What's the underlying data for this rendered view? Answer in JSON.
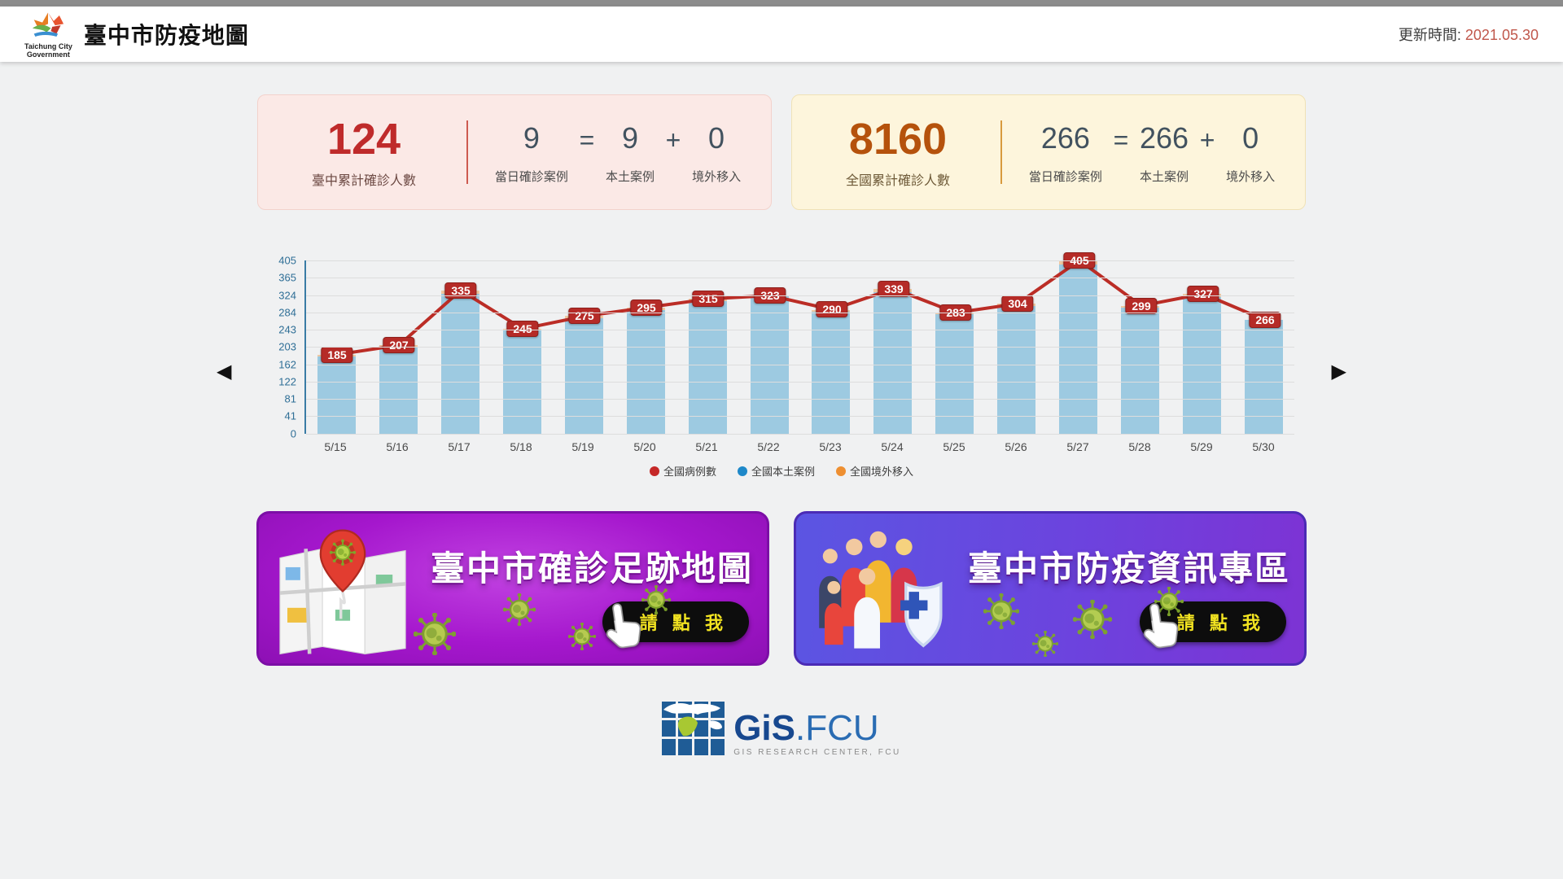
{
  "header": {
    "title": "臺中市防疫地圖",
    "logo_line1": "Taichung City",
    "logo_line2": "Government",
    "update_label": "更新時間:",
    "update_date": "2021.05.30"
  },
  "cards": [
    {
      "total": "124",
      "total_label": "臺中累計確診人數",
      "daily": "9",
      "daily_label": "當日確診案例",
      "eq": "=",
      "local": "9",
      "local_label": "本土案例",
      "plus": "+",
      "imported": "0",
      "imported_label": "境外移入"
    },
    {
      "total": "8160",
      "total_label": "全國累計確診人數",
      "daily": "266",
      "daily_label": "當日確診案例",
      "eq": "=",
      "local": "266",
      "local_label": "本土案例",
      "plus": "+",
      "imported": "0",
      "imported_label": "境外移入"
    }
  ],
  "chart_data": {
    "type": "bar+line",
    "categories": [
      "5/15",
      "5/16",
      "5/17",
      "5/18",
      "5/19",
      "5/20",
      "5/21",
      "5/22",
      "5/23",
      "5/24",
      "5/25",
      "5/26",
      "5/27",
      "5/28",
      "5/29",
      "5/30"
    ],
    "series": [
      {
        "name": "全國病例數",
        "type": "line",
        "color": "#bb2d26",
        "legend_color": "#c52828",
        "values": [
          185,
          207,
          335,
          245,
          275,
          295,
          315,
          323,
          290,
          339,
          283,
          304,
          405,
          299,
          327,
          266
        ],
        "labels_shown": true
      },
      {
        "name": "全國本土案例",
        "type": "bar",
        "color": "#9dcae1",
        "legend_color": "#1e88c9",
        "values": [
          180,
          203,
          328,
          241,
          270,
          289,
          310,
          321,
          286,
          330,
          280,
          298,
          395,
          295,
          319,
          266
        ],
        "estimated": true
      },
      {
        "name": "全國境外移入",
        "type": "bar",
        "color": "#f0c9a2",
        "legend_color": "#ee8f31",
        "values": [
          5,
          4,
          7,
          4,
          5,
          6,
          5,
          2,
          4,
          9,
          3,
          6,
          10,
          4,
          8,
          0
        ],
        "estimated": true
      }
    ],
    "y_ticks": [
      405,
      365,
      324,
      284,
      243,
      203,
      162,
      122,
      81,
      41,
      0
    ],
    "ylim": [
      0,
      405
    ],
    "grid": "horizontal",
    "legend_position": "bottom",
    "nav_prev": "◀",
    "nav_next": "▶"
  },
  "banners": [
    {
      "title": "臺中市確診足跡地圖",
      "cta": "請 點 我"
    },
    {
      "title": "臺中市防疫資訊專區",
      "cta": "請 點 我"
    }
  ],
  "footer": {
    "logo_gis": "GiS",
    "logo_fcu": ".FCU",
    "logo_sub": "GIS  RESEARCH  CENTER,  FCU"
  },
  "colors": {
    "line": "#bb2d26",
    "bar_local": "#9dcae1",
    "bar_imported": "#f0c9a2",
    "axis": "#3a7ca5",
    "card_taichung_accent": "#bf2b2b",
    "card_national_accent": "#b5520c"
  }
}
